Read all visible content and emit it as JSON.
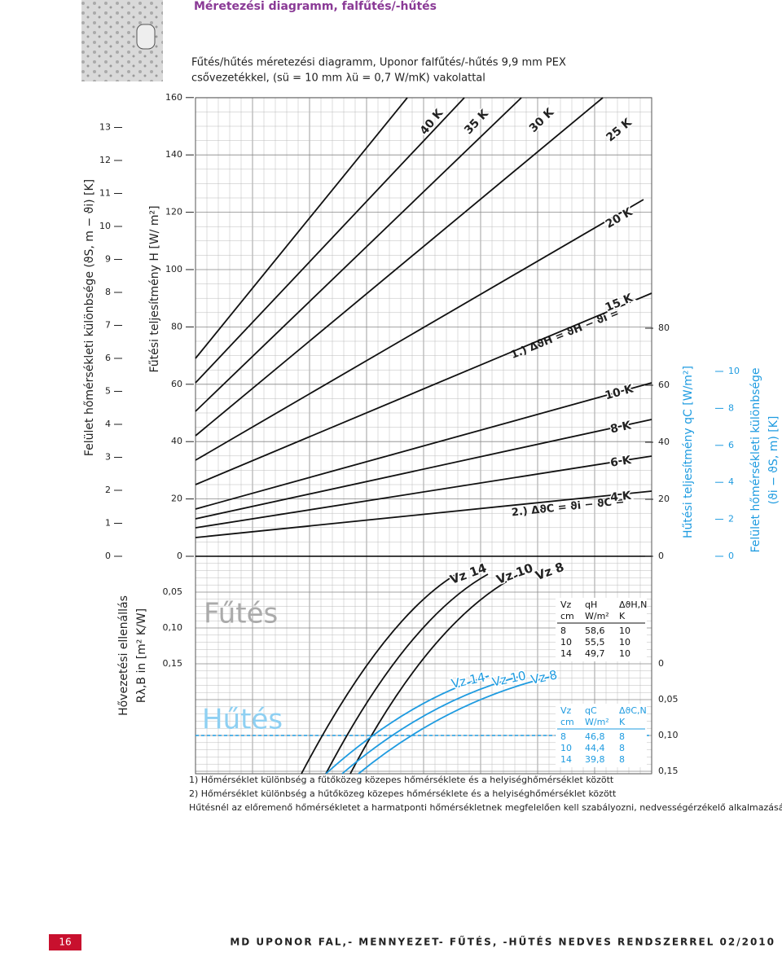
{
  "header": {
    "title": "Méretezési diagramm, falfűtés/-hűtés",
    "subtitle_line1": "Fűtés/hűtés méretezési diagramm, Uponor falfűtés/-hűtés 9,9 mm PEX",
    "subtitle_line2": "csővezetékkel, (sü = 10 mm λü = 0,7 W/mK) vakolattal"
  },
  "axes": {
    "surface_diff_heating": {
      "label": "Felület hőmérsékleti különbsége (ϑS, m − ϑi) [K]",
      "ticks": [
        "0",
        "1",
        "2",
        "3",
        "4",
        "5",
        "6",
        "7",
        "8",
        "9",
        "10",
        "11",
        "12",
        "13"
      ]
    },
    "heating_output": {
      "label": "Fűtési teljesítmény H [W/ m²]",
      "ticks": [
        "0",
        "20",
        "40",
        "60",
        "80",
        "100",
        "120",
        "140",
        "160"
      ]
    },
    "resistance": {
      "label_line1": "Hővezetési ellenállás",
      "label_line2": "Rλ,B in [m² K/W]",
      "ticks_left": [
        "0,05",
        "0,10",
        "0,15"
      ],
      "ticks_right": [
        "0",
        "0,05",
        "0,10",
        "0,15"
      ]
    },
    "cooling_output": {
      "label": "Hűtési teljesítmény qC [W/m²]",
      "ticks": [
        "0",
        "20",
        "40",
        "60",
        "80"
      ]
    },
    "surface_diff_cooling": {
      "label_line1": "Felület hőmérsékleti különbsége",
      "label_line2": "(ϑi − ϑS, m) [K]",
      "ticks": [
        "0",
        "2",
        "4",
        "6",
        "8",
        "10"
      ]
    }
  },
  "lines": [
    "40 K",
    "35 K",
    "30 K",
    "25 K",
    "20 K",
    "15 K",
    "10 K",
    "8 K",
    "6 K",
    "4 K"
  ],
  "annotations": {
    "heating": "1.) ΔϑH = ϑH − ϑi =",
    "cooling": "2.) ΔϑC = ϑi − ϑC =",
    "fut": "Fűtés",
    "hut": "Hűtés"
  },
  "vz_heating_labels": [
    "Vz 14",
    "Vz 10",
    "Vz 8"
  ],
  "vz_cooling_labels": [
    "Vz 14",
    "Vz 10",
    "Vz 8"
  ],
  "table_heating": [
    [
      "Vz",
      "qH",
      "ΔϑH,N"
    ],
    [
      "cm",
      "W/m²",
      "K"
    ],
    [
      "8",
      "58,6",
      "10"
    ],
    [
      "10",
      "55,5",
      "10"
    ],
    [
      "14",
      "49,7",
      "10"
    ]
  ],
  "table_cooling": [
    [
      "Vz",
      "qC",
      "ΔϑC,N"
    ],
    [
      "cm",
      "W/m²",
      "K"
    ],
    [
      "8",
      "46,8",
      "8"
    ],
    [
      "10",
      "44,4",
      "8"
    ],
    [
      "14",
      "39,8",
      "8"
    ]
  ],
  "footnotes": [
    "1) Hőmérséklet különbség a fűtőközeg közepes hőmérséklete és a helyiséghőmérséklet között",
    "2) Hőmérséklet különbség a hűtőközeg közepes hőmérséklete és a helyiséghőmérséklet között",
    "Hűtésnél az előremenő hőmérsékletet a harmatponti hőmérsékletnek megfelelően kell szabályozni, nedvességérzékelő alkalmazásával."
  ],
  "footer": {
    "page": "16",
    "text": "MD UPONOR FAL,- MENNYEZET- FŰTÉS, -HŰTÉS NEDVES RENDSZERREL 02/2010"
  }
}
